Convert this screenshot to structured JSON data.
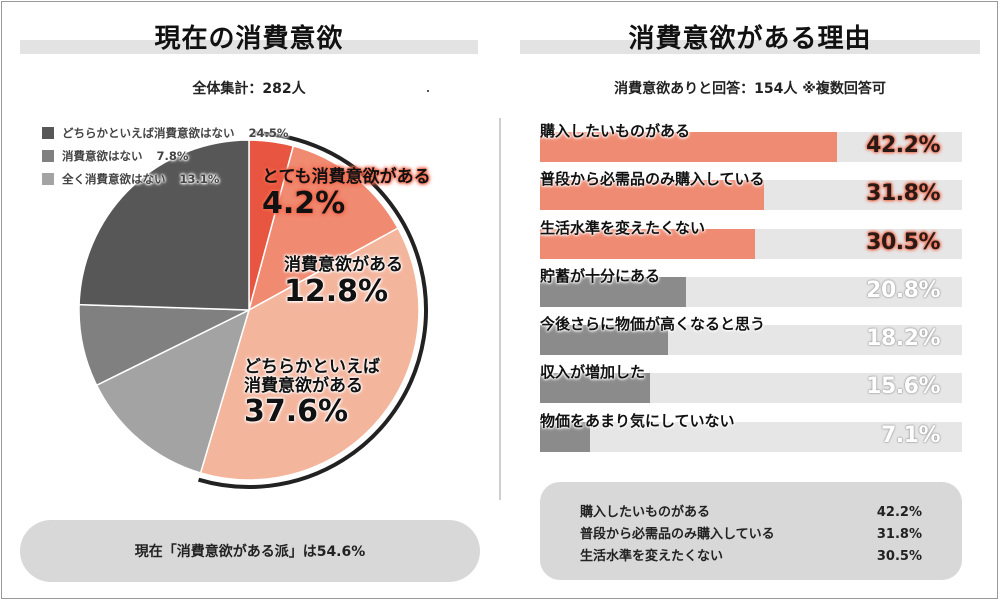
{
  "colors": {
    "very": "#e85540",
    "some": "#f08a71",
    "rather": "#f4b59d",
    "rather_not": "#575757",
    "not": "#808080",
    "none": "#a3a3a3",
    "bar_top": "#ef8b72",
    "bar_rest": "#8b8b8b",
    "track": "#e6e6e6"
  },
  "left_panel": {
    "title": "現在の消費意欲",
    "subtitle": "全体集計：282人",
    "summary": "現在「消費意欲がある派」は54.6%"
  },
  "right_panel": {
    "title": "消費意欲がある理由",
    "subtitle": "消費意欲ありと回答：154人 ※複数回答可",
    "summary_rows": [
      {
        "label": "購入したいものがある",
        "value": "42.2%"
      },
      {
        "label": "普段から必需品のみ購入している",
        "value": "31.8%"
      },
      {
        "label": "生活水準を変えたくない",
        "value": "30.5%"
      }
    ]
  },
  "chart_data": [
    {
      "type": "pie",
      "title": "現在の消費意欲",
      "slices": [
        {
          "label": "とても消費意欲がある",
          "value": 4.2,
          "display": "4.2%",
          "color_key": "very"
        },
        {
          "label": "消費意欲がある",
          "value": 12.8,
          "display": "12.8%",
          "color_key": "some"
        },
        {
          "label_line1": "どちらかといえば",
          "label_line2": "消費意欲がある",
          "value": 37.6,
          "display": "37.6%",
          "color_key": "rather"
        },
        {
          "label": "全く消費意欲はない",
          "value": 13.1,
          "display": "13.1%",
          "color_key": "none"
        },
        {
          "label": "消費意欲はない",
          "value": 7.8,
          "display": "7.8%",
          "color_key": "not"
        },
        {
          "label": "どちらかといえば消費意欲はない",
          "value": 24.5,
          "display": "24.5%",
          "color_key": "rather_not"
        }
      ],
      "legend": [
        {
          "label": "どちらかといえば消費意欲はない",
          "display": "24.5%",
          "color_key": "rather_not"
        },
        {
          "label": "消費意欲はない",
          "display": "7.8%",
          "color_key": "not"
        },
        {
          "label": "全く消費意欲はない",
          "display": "13.1%",
          "color_key": "none"
        }
      ]
    },
    {
      "type": "bar",
      "title": "消費意欲がある理由",
      "orientation": "horizontal",
      "xlim": [
        0,
        60
      ],
      "bars": [
        {
          "label": "購入したいものがある",
          "value": 42.2,
          "display": "42.2%",
          "highlight": true
        },
        {
          "label": "普段から必需品のみ購入している",
          "value": 31.8,
          "display": "31.8%",
          "highlight": true
        },
        {
          "label": "生活水準を変えたくない",
          "value": 30.5,
          "display": "30.5%",
          "highlight": true
        },
        {
          "label": "貯蓄が十分にある",
          "value": 20.8,
          "display": "20.8%",
          "highlight": false
        },
        {
          "label": "今後さらに物価が高くなると思う",
          "value": 18.2,
          "display": "18.2%",
          "highlight": false
        },
        {
          "label": "収入が増加した",
          "value": 15.6,
          "display": "15.6%",
          "highlight": false
        },
        {
          "label": "物価をあまり気にしていない",
          "value": 7.1,
          "display": "7.1%",
          "highlight": false
        }
      ]
    }
  ]
}
